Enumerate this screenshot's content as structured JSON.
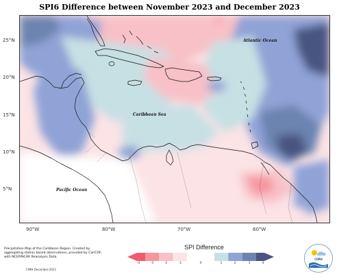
{
  "title": "SPI6 Difference between November 2023 and December 2023",
  "axes": {
    "lat_labels": [
      "25°N",
      "20°N",
      "15°N",
      "10°N",
      "5°N"
    ],
    "lon_labels": [
      "90°W",
      "80°W",
      "70°W",
      "60°W"
    ]
  },
  "places": {
    "atlantic": "Atlantic Ocean",
    "caribbean": "Caribbean Sea",
    "pacific": "Pacific Ocean"
  },
  "legend": {
    "title": "SPI Difference",
    "ticks": [
      "-4",
      "-3",
      "-2",
      "-1",
      "0",
      "1",
      "2",
      "3",
      "4"
    ],
    "colors": {
      "neg_extreme": "#f25a6e",
      "neg_strong": "#f6959f",
      "neg_moderate": "#f8c1c7",
      "neg_mild": "#fbe3e6",
      "pos_mild": "#c7e0e4",
      "pos_moderate": "#8fa3d6",
      "pos_strong": "#6c84b0",
      "pos_extreme": "#4a5581"
    }
  },
  "credit": {
    "text": "Precipitation Map of the Caribbean Region. Created by aggregating station based observations, provided by CariCOF, with NCEP/NCAR Reanalysis Data.",
    "date": "CIMH December-2023"
  },
  "logo": {
    "text": "CIMH"
  }
}
